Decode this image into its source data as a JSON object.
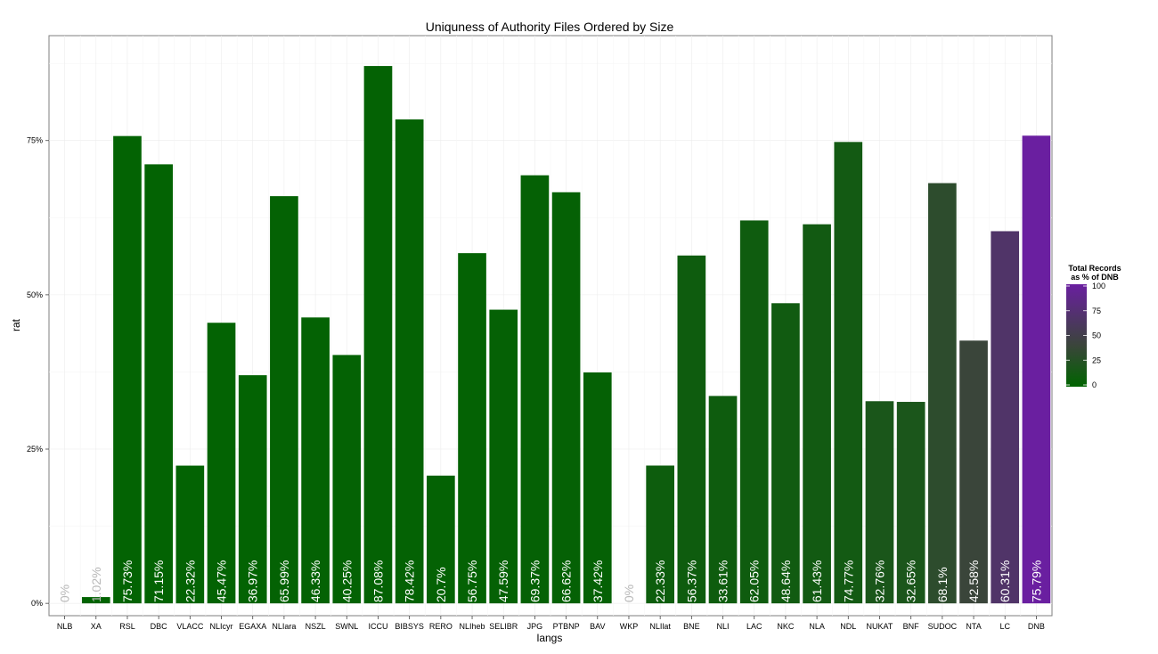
{
  "chart_data": {
    "type": "bar",
    "title": "Uniquness of Authority Files Ordered by Size",
    "xlabel": "langs",
    "ylabel": "rat",
    "categories": [
      "NLB",
      "XA",
      "RSL",
      "DBC",
      "VLACC",
      "NLIcyr",
      "EGAXA",
      "NLIara",
      "NSZL",
      "SWNL",
      "ICCU",
      "BIBSYS",
      "RERO",
      "NLIheb",
      "SELIBR",
      "JPG",
      "PTBNP",
      "BAV",
      "WKP",
      "NLIlat",
      "BNE",
      "NLI",
      "LAC",
      "NKC",
      "NLA",
      "NDL",
      "NUKAT",
      "BNF",
      "SUDOC",
      "NTA",
      "LC",
      "DNB"
    ],
    "values": [
      0,
      1.02,
      75.73,
      71.15,
      22.32,
      45.47,
      36.97,
      65.99,
      46.33,
      40.25,
      87.08,
      78.42,
      20.7,
      56.75,
      47.59,
      69.37,
      66.62,
      37.42,
      0,
      22.33,
      56.37,
      33.61,
      62.05,
      48.64,
      61.43,
      74.77,
      32.76,
      32.65,
      68.1,
      42.58,
      60.31,
      75.79
    ],
    "bar_labels": [
      "0%",
      "1.02%",
      "75.73%",
      "71.15%",
      "22.32%",
      "45.47%",
      "36.97%",
      "65.99%",
      "46.33%",
      "40.25%",
      "87.08%",
      "78.42%",
      "20.7%",
      "56.75%",
      "47.59%",
      "69.37%",
      "66.62%",
      "37.42%",
      "0%",
      "22.33%",
      "56.37%",
      "33.61%",
      "62.05%",
      "48.64%",
      "61.43%",
      "74.77%",
      "32.76%",
      "32.65%",
      "68.1%",
      "42.58%",
      "60.31%",
      "75.79%"
    ],
    "fill_values": [
      1,
      1,
      2,
      2,
      2,
      2,
      2,
      3,
      3,
      3,
      3,
      3,
      3,
      3,
      4,
      4,
      4,
      4,
      5,
      10,
      11,
      11,
      12,
      13,
      14,
      15,
      20,
      21,
      35,
      45,
      70,
      100
    ],
    "ylim": [
      -2,
      92
    ],
    "yticks": [
      0,
      25,
      50,
      75
    ],
    "ytick_labels": [
      "0%",
      "25%",
      "50%",
      "75%"
    ],
    "grid": true,
    "legend": {
      "title_line1": "Total Records",
      "title_line2": "as % of DNB",
      "range": [
        0,
        100
      ],
      "ticks": [
        0,
        25,
        50,
        75,
        100
      ],
      "tick_labels": [
        "0",
        "25",
        "50",
        "75",
        "100"
      ],
      "low_color": "#006400",
      "high_color": "#6a1fa0",
      "placement": "right"
    }
  }
}
